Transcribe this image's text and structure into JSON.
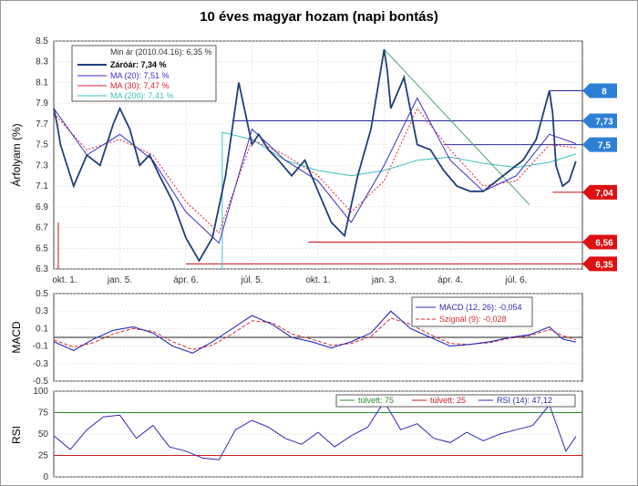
{
  "title": "10 éves magyar hozam (napi bontás)",
  "x_ticks": [
    "okt. 1.",
    "jan. 5.",
    "ápr. 6.",
    "júl. 5.",
    "okt. 1.",
    "jan. 3.",
    "ápr. 4.",
    "júl. 6."
  ],
  "price_panel": {
    "ylabel": "Árfolyam (%)",
    "yticks": [
      "8.5",
      "8.3",
      "8.1",
      "7.9",
      "7.7",
      "7.5",
      "7.3",
      "7.1",
      "6.9",
      "6.7",
      "6.5",
      "6.3"
    ],
    "legend": {
      "min_line": "Min ár (2010.04.16): 6,35 %",
      "close": "Záróár: 7,34 %",
      "ma20": "MA (20): 7,51 %",
      "ma30": "MA (30): 7,47 %",
      "ma200": "MA (200): 7,41 %"
    },
    "flags": [
      {
        "label": "8",
        "value": 8.02,
        "color": "#2d7fd6"
      },
      {
        "label": "7,73",
        "value": 7.73,
        "color": "#2d7fd6"
      },
      {
        "label": "7,5",
        "value": 7.5,
        "color": "#2d7fd6"
      },
      {
        "label": "7,04",
        "value": 7.04,
        "color": "#dd1111"
      },
      {
        "label": "6,56",
        "value": 6.56,
        "color": "#dd1111"
      },
      {
        "label": "6,35",
        "value": 6.35,
        "color": "#dd1111"
      }
    ]
  },
  "macd_panel": {
    "ylabel": "MACD",
    "yticks": [
      "0.5",
      "0.3",
      "0.1",
      "-0.1",
      "-0.3",
      "-0.5"
    ],
    "legend": {
      "macd": "MACD (12, 26): -0,054",
      "signal": "Szignál (9): -0,028"
    }
  },
  "rsi_panel": {
    "ylabel": "RSI",
    "yticks": [
      "100",
      "75",
      "50",
      "25",
      "0"
    ],
    "legend": {
      "overbought": "túlvett: 75",
      "oversold": "túlvett: 25",
      "rsi": "RSI (14): 47,12"
    }
  },
  "colors": {
    "close": "#1f3f7a",
    "ma20": "#3b2fc9",
    "ma30": "#e0202f",
    "ma200": "#3fbfbf",
    "trend": "#4aa36a",
    "resist": "#2a2a9a",
    "support": "#cc1010",
    "macd": "#2a2ab8",
    "signal": "#d23030",
    "rsi": "#2a2ab8",
    "ob": "#2a8a2a",
    "os": "#cc2020"
  },
  "chart_data": [
    {
      "type": "line",
      "title": "10 éves magyar hozam (napi bontás)",
      "ylabel": "Árfolyam (%)",
      "ylim": [
        6.3,
        8.5
      ],
      "categories": [
        "okt. 1.",
        "jan. 5.",
        "ápr. 6.",
        "júl. 5.",
        "okt. 1.",
        "jan. 3.",
        "ápr. 4.",
        "júl. 6."
      ],
      "grid": true,
      "legend": "top-left",
      "series": [
        {
          "name": "Záróár: 7,34 %",
          "x": [
            0,
            0.05,
            0.1,
            0.3,
            0.5,
            0.7,
            0.9,
            1.0,
            1.15,
            1.3,
            1.45,
            1.6,
            1.8,
            2.0,
            2.2,
            2.4,
            2.6,
            2.8,
            3.0,
            3.1,
            3.25,
            3.4,
            3.6,
            3.8,
            4.0,
            4.2,
            4.4,
            4.6,
            4.8,
            5.0,
            5.05,
            5.1,
            5.3,
            5.5,
            5.7,
            5.9,
            6.1,
            6.3,
            6.5,
            6.7,
            6.9,
            7.1,
            7.3,
            7.5,
            7.55,
            7.6,
            7.7,
            7.8,
            7.9
          ],
          "values": [
            7.85,
            7.7,
            7.5,
            7.1,
            7.4,
            7.3,
            7.7,
            7.85,
            7.65,
            7.3,
            7.4,
            7.2,
            6.95,
            6.6,
            6.38,
            6.6,
            7.2,
            8.1,
            7.5,
            7.6,
            7.45,
            7.35,
            7.2,
            7.35,
            7.05,
            6.75,
            6.62,
            7.2,
            7.65,
            8.42,
            8.2,
            7.85,
            8.15,
            7.5,
            7.45,
            7.25,
            7.1,
            7.05,
            7.05,
            7.15,
            7.25,
            7.35,
            7.55,
            8.02,
            7.8,
            7.3,
            7.1,
            7.15,
            7.34
          ]
        },
        {
          "name": "MA (20): 7,51 %",
          "x": [
            0,
            0.5,
            1.0,
            1.5,
            2.0,
            2.5,
            3.0,
            3.5,
            4.0,
            4.5,
            5.0,
            5.5,
            6.0,
            6.5,
            7.0,
            7.5,
            7.9
          ],
          "values": [
            7.85,
            7.4,
            7.6,
            7.35,
            6.85,
            6.55,
            7.65,
            7.35,
            7.15,
            6.75,
            7.3,
            7.95,
            7.35,
            7.05,
            7.2,
            7.6,
            7.51
          ]
        },
        {
          "name": "MA (30): 7,47 %",
          "x": [
            0,
            0.5,
            1.0,
            1.5,
            2.0,
            2.5,
            3.0,
            3.5,
            4.0,
            4.5,
            5.0,
            5.5,
            6.0,
            6.5,
            7.0,
            7.5,
            7.9
          ],
          "values": [
            7.8,
            7.45,
            7.55,
            7.4,
            6.95,
            6.65,
            7.55,
            7.4,
            7.2,
            6.85,
            7.15,
            7.85,
            7.45,
            7.1,
            7.15,
            7.5,
            7.47
          ]
        },
        {
          "name": "MA (200): 7,41 %",
          "x": [
            2.55,
            3.0,
            3.5,
            4.0,
            4.5,
            5.0,
            5.5,
            6.0,
            6.5,
            7.0,
            7.5,
            7.9
          ],
          "values": [
            7.62,
            7.55,
            7.35,
            7.25,
            7.2,
            7.25,
            7.35,
            7.38,
            7.32,
            7.28,
            7.33,
            7.41
          ]
        }
      ],
      "reference_lines": [
        8.02,
        7.73,
        7.5,
        7.04,
        6.56,
        6.35
      ]
    },
    {
      "type": "line",
      "ylabel": "MACD",
      "ylim": [
        -0.5,
        0.5
      ],
      "legend": "top-right",
      "series": [
        {
          "name": "MACD (12, 26): -0,054",
          "x": [
            0,
            0.3,
            0.6,
            0.9,
            1.2,
            1.5,
            1.8,
            2.1,
            2.4,
            2.7,
            3.0,
            3.3,
            3.6,
            3.9,
            4.2,
            4.5,
            4.8,
            5.1,
            5.4,
            5.7,
            6.0,
            6.3,
            6.6,
            6.9,
            7.2,
            7.5,
            7.7,
            7.9
          ],
          "values": [
            -0.05,
            -0.15,
            -0.02,
            0.08,
            0.12,
            0.05,
            -0.1,
            -0.18,
            -0.05,
            0.1,
            0.25,
            0.15,
            0.0,
            -0.05,
            -0.12,
            -0.05,
            0.05,
            0.3,
            0.1,
            0.0,
            -0.1,
            -0.08,
            -0.05,
            0.0,
            0.03,
            0.12,
            -0.02,
            -0.054
          ]
        },
        {
          "name": "Szignál (9): -0,028",
          "x": [
            0,
            0.3,
            0.6,
            0.9,
            1.2,
            1.5,
            1.8,
            2.1,
            2.4,
            2.7,
            3.0,
            3.3,
            3.6,
            3.9,
            4.2,
            4.5,
            4.8,
            5.1,
            5.4,
            5.7,
            6.0,
            6.3,
            6.6,
            6.9,
            7.2,
            7.5,
            7.7,
            7.9
          ],
          "values": [
            -0.03,
            -0.11,
            -0.06,
            0.04,
            0.1,
            0.07,
            -0.05,
            -0.14,
            -0.09,
            0.04,
            0.19,
            0.17,
            0.04,
            -0.02,
            -0.09,
            -0.07,
            0.01,
            0.22,
            0.15,
            0.03,
            -0.07,
            -0.08,
            -0.06,
            -0.01,
            0.02,
            0.09,
            0.02,
            -0.028
          ]
        }
      ]
    },
    {
      "type": "line",
      "ylabel": "RSI",
      "ylim": [
        0,
        100
      ],
      "legend": "top-right",
      "series": [
        {
          "name": "RSI (14): 47,12",
          "x": [
            0,
            0.25,
            0.5,
            0.75,
            1.0,
            1.25,
            1.5,
            1.75,
            2.0,
            2.25,
            2.5,
            2.75,
            3.0,
            3.25,
            3.5,
            3.75,
            4.0,
            4.25,
            4.5,
            4.75,
            5.0,
            5.25,
            5.5,
            5.75,
            6.0,
            6.25,
            6.5,
            6.75,
            7.0,
            7.25,
            7.5,
            7.75,
            7.9
          ],
          "values": [
            48,
            32,
            55,
            70,
            72,
            45,
            60,
            35,
            30,
            22,
            20,
            55,
            66,
            58,
            45,
            38,
            52,
            35,
            48,
            58,
            88,
            55,
            62,
            45,
            40,
            52,
            42,
            50,
            55,
            60,
            84,
            30,
            47.12
          ]
        }
      ],
      "reference_lines": [
        75,
        25
      ]
    }
  ]
}
